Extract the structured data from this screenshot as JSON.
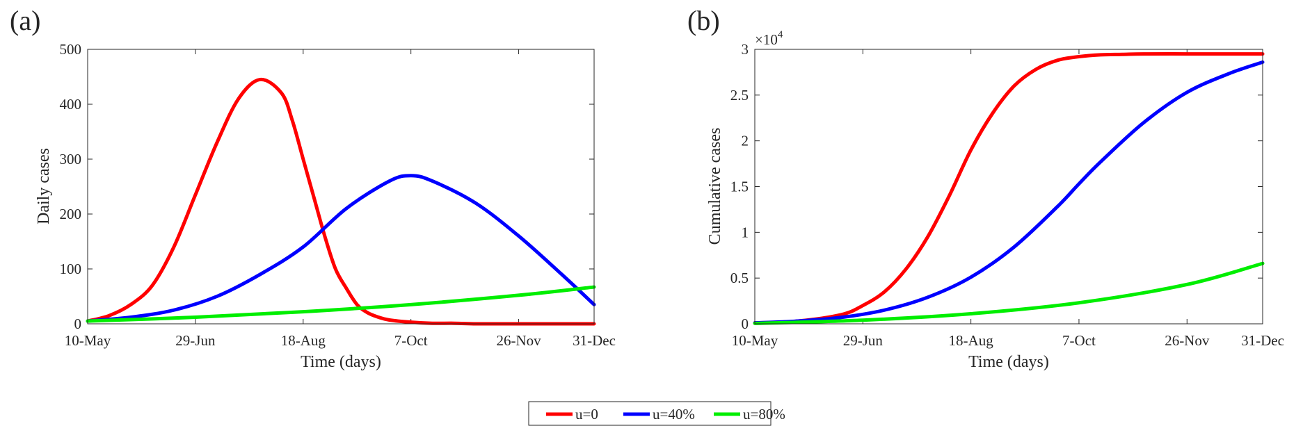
{
  "chart_data": [
    {
      "type": "line",
      "panel_label": "(a)",
      "xlabel": "Time (days)",
      "ylabel": "Daily cases",
      "x_tick_labels": [
        "10-May",
        "29-Jun",
        "18-Aug",
        "7-Oct",
        "26-Nov",
        "31-Dec"
      ],
      "x_tick_day": [
        0,
        50,
        100,
        150,
        200,
        235
      ],
      "xlim": [
        0,
        235
      ],
      "ylim": [
        0,
        500
      ],
      "y_ticks": [
        "0",
        "100",
        "200",
        "300",
        "400",
        "500"
      ],
      "y_tick_values": [
        0,
        100,
        200,
        300,
        400,
        500
      ],
      "grid": false,
      "legend_position": "bottom-center",
      "series": [
        {
          "name": "u=0",
          "color": "#ff0000",
          "x": [
            0,
            10,
            20,
            30,
            40,
            50,
            60,
            70,
            80,
            90,
            95,
            100,
            105,
            110,
            115,
            120,
            125,
            130,
            135,
            140,
            150,
            160,
            170,
            180,
            190,
            200,
            210,
            220,
            235
          ],
          "y": [
            5,
            15,
            35,
            70,
            140,
            235,
            330,
            410,
            445,
            420,
            370,
            300,
            230,
            160,
            100,
            65,
            35,
            20,
            12,
            7,
            3,
            1,
            1,
            0,
            0,
            0,
            0,
            0,
            0
          ]
        },
        {
          "name": "u=40%",
          "color": "#0000ff",
          "x": [
            0,
            20,
            40,
            60,
            80,
            100,
            120,
            140,
            150,
            160,
            180,
            200,
            220,
            235
          ],
          "y": [
            5,
            12,
            25,
            50,
            90,
            140,
            210,
            260,
            270,
            260,
            220,
            160,
            90,
            35
          ]
        },
        {
          "name": "u=80%",
          "color": "#00ee00",
          "x": [
            0,
            50,
            100,
            150,
            200,
            235
          ],
          "y": [
            5,
            12,
            22,
            35,
            52,
            67
          ]
        }
      ]
    },
    {
      "type": "line",
      "panel_label": "(b)",
      "xlabel": "Time (days)",
      "ylabel": "Cumulative cases",
      "y_exponent_base": "×10",
      "y_exponent_power": "4",
      "x_tick_labels": [
        "10-May",
        "29-Jun",
        "18-Aug",
        "7-Oct",
        "26-Nov",
        "31-Dec"
      ],
      "x_tick_day": [
        0,
        50,
        100,
        150,
        200,
        235
      ],
      "xlim": [
        0,
        235
      ],
      "ylim": [
        0,
        30000
      ],
      "y_ticks": [
        "0",
        "0.5",
        "1",
        "1.5",
        "2",
        "2.5",
        "3"
      ],
      "y_tick_values": [
        0,
        5000,
        10000,
        15000,
        20000,
        25000,
        30000
      ],
      "grid": false,
      "series": [
        {
          "name": "u=0",
          "color": "#ff0000",
          "x": [
            0,
            20,
            40,
            50,
            60,
            70,
            80,
            90,
            100,
            110,
            120,
            130,
            140,
            150,
            160,
            170,
            180,
            200,
            220,
            235
          ],
          "y": [
            100,
            300,
            1000,
            2000,
            3500,
            6000,
            9500,
            14000,
            19000,
            23000,
            26000,
            27800,
            28800,
            29200,
            29400,
            29450,
            29500,
            29500,
            29500,
            29500
          ]
        },
        {
          "name": "u=40%",
          "color": "#0000ff",
          "x": [
            0,
            20,
            40,
            60,
            80,
            100,
            120,
            140,
            150,
            160,
            180,
            200,
            220,
            235
          ],
          "y": [
            100,
            300,
            700,
            1500,
            2900,
            5100,
            8400,
            12800,
            15300,
            17700,
            22000,
            25300,
            27400,
            28600
          ]
        },
        {
          "name": "u=80%",
          "color": "#00ee00",
          "x": [
            0,
            50,
            100,
            150,
            200,
            235
          ],
          "y": [
            50,
            400,
            1100,
            2300,
            4300,
            6600
          ]
        }
      ]
    }
  ],
  "legend": {
    "entries": [
      {
        "label": "u=0",
        "color": "#ff0000"
      },
      {
        "label": "u=40%",
        "color": "#0000ff"
      },
      {
        "label": "u=80%",
        "color": "#00ee00"
      }
    ]
  }
}
